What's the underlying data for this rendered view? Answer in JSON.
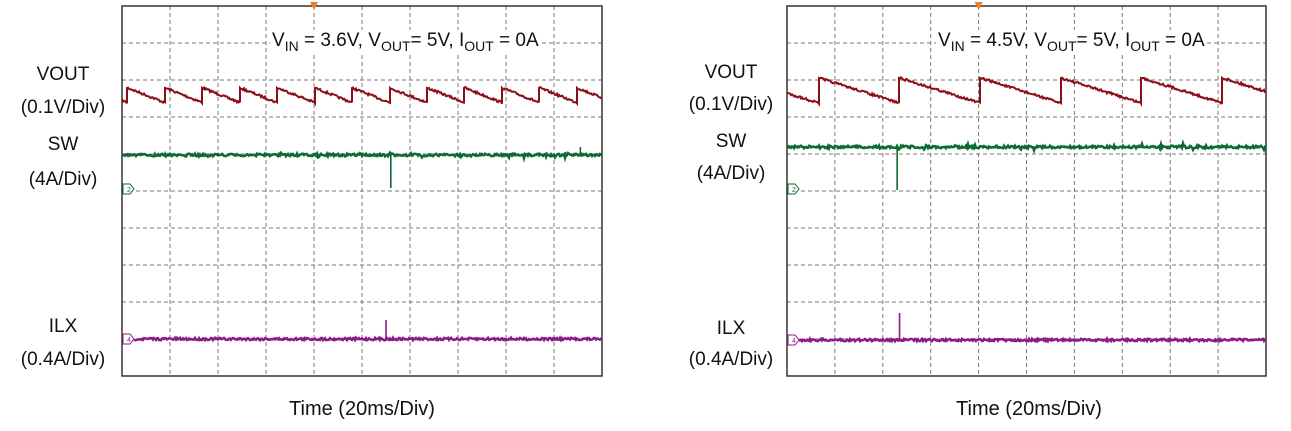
{
  "chart_data": [
    {
      "type": "line",
      "annotation": {
        "vin_label": "V",
        "vin_sub": "IN",
        "vin_val": " = 3.6V, ",
        "vout_label": "V",
        "vout_sub": "OUT",
        "vout_val": "= 5V, ",
        "iout_label": "I",
        "iout_sub": "OUT",
        "iout_val": " = 0A"
      },
      "xlabel": "Time (20ms/Div)",
      "x_div_ms": 20,
      "x_divisions": 10,
      "y_divisions": 10,
      "grid": true,
      "trigger_marker_color": "#e8822a",
      "series": [
        {
          "name": "VOUT",
          "scale_label": "(0.1V/Div)",
          "volts_per_div": 0.1,
          "color": "#8b0f14",
          "waveform": "sawtooth",
          "period_ms": 15.6,
          "first_jump_ms": 2.5,
          "ripple_V": 0.04
        },
        {
          "name": "SW",
          "scale_label": "(4A/Div)",
          "color": "#0b6b30",
          "channel_marker": "2",
          "spike_ms": 112,
          "spike_direction": "down",
          "extra_spike_ms": 191
        },
        {
          "name": "ILX",
          "scale_label": "(0.4A/Div)",
          "color": "#8b1a8b",
          "channel_marker": "4",
          "spike_ms": 110,
          "spike_direction": "up"
        }
      ]
    },
    {
      "type": "line",
      "annotation": {
        "vin_label": "V",
        "vin_sub": "IN",
        "vin_val": " = 4.5V, ",
        "vout_label": "V",
        "vout_sub": "OUT",
        "vout_val": "= 5V, ",
        "iout_label": "I",
        "iout_sub": "OUT",
        "iout_val": " = 0A"
      },
      "xlabel": "Time (20ms/Div)",
      "x_div_ms": 20,
      "x_divisions": 10,
      "y_divisions": 10,
      "grid": true,
      "trigger_marker_color": "#e8822a",
      "series": [
        {
          "name": "VOUT",
          "scale_label": "(0.1V/Div)",
          "volts_per_div": 0.1,
          "color": "#8b0f14",
          "waveform": "sawtooth",
          "period_ms": 33.7,
          "first_jump_ms": 13.4,
          "ripple_V": 0.068
        },
        {
          "name": "SW",
          "scale_label": "(4A/Div)",
          "color": "#0b6b30",
          "channel_marker": "2",
          "spike_ms": 46,
          "spike_direction": "down"
        },
        {
          "name": "ILX",
          "scale_label": "(0.4A/Div)",
          "color": "#8b1a8b",
          "channel_marker": "4",
          "spike_ms": 47,
          "spike_direction": "up"
        }
      ]
    }
  ]
}
